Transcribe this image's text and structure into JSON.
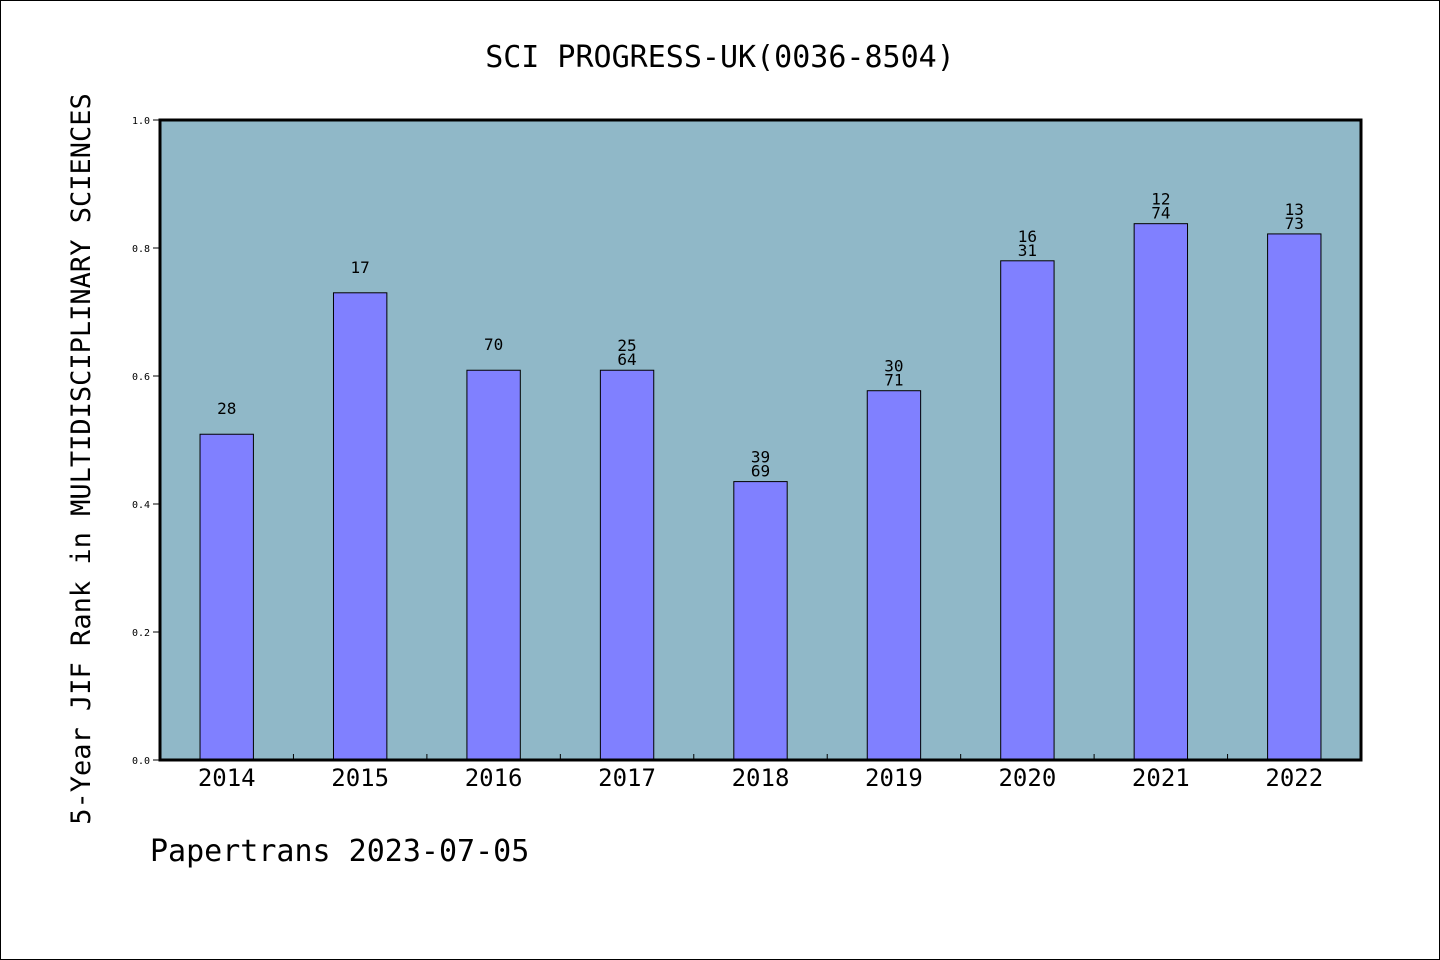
{
  "chart_data": {
    "type": "bar",
    "title": "SCI PROGRESS-UK(0036-8504)",
    "ylabel": "5-Year JIF Rank in MULTIDISCIPLINARY SCIENCES",
    "xlabel": "",
    "ylim": [
      0,
      1.0
    ],
    "yticks": [
      0.0,
      0.2,
      0.4,
      0.6,
      0.8,
      1.0
    ],
    "grid": false,
    "background_color": "#90b8c8",
    "bar_color": "#8080ff",
    "categories": [
      "2014",
      "2015",
      "2016",
      "2017",
      "2018",
      "2019",
      "2020",
      "2021",
      "2022"
    ],
    "values": [
      0.509,
      0.73,
      0.609,
      0.609,
      0.435,
      0.577,
      0.78,
      0.838,
      0.822
    ],
    "bar_labels": [
      [
        "28"
      ],
      [
        "17"
      ],
      [
        "70"
      ],
      [
        "25",
        "64"
      ],
      [
        "39",
        "69"
      ],
      [
        "30",
        "71"
      ],
      [
        "16",
        "31"
      ],
      [
        "12",
        "74"
      ],
      [
        "13",
        "73"
      ]
    ]
  },
  "footer": "Papertrans 2023-07-05"
}
